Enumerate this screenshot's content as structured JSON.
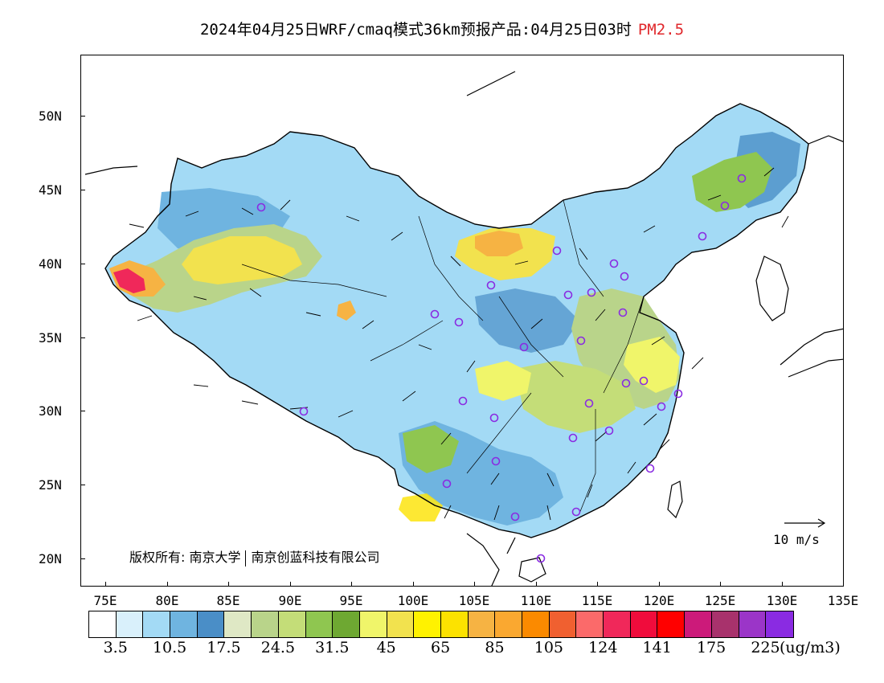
{
  "title": {
    "main": "2024年04月25日WRF/cmaq模式36km预报产品:04月25日03时",
    "pollutant": "PM2.5"
  },
  "map": {
    "lat_labels": [
      "50N",
      "45N",
      "40N",
      "35N",
      "30N",
      "25N",
      "20N"
    ],
    "lon_labels": [
      "75E",
      "80E",
      "85E",
      "90E",
      "95E",
      "100E",
      "105E",
      "110E",
      "115E",
      "120E",
      "125E",
      "130E",
      "135E"
    ],
    "copyright_left": "版权所有: 南京大学",
    "copyright_right": "南京创蓝科技有限公司",
    "reference_vector_label": "10 m/s",
    "coastline_color": "#000000",
    "station_marker_color": "#8a2be2"
  },
  "legend": {
    "colors": [
      "#ffffff",
      "#d9f0fb",
      "#a3daf5",
      "#6fb4e0",
      "#4a8ec7",
      "#dfe8c5",
      "#b9d48a",
      "#c4dd78",
      "#8fc650",
      "#6ea832",
      "#f0f56a",
      "#f2e24e",
      "#fff200",
      "#fce200",
      "#f6b343",
      "#faa830",
      "#fb8a00",
      "#f06030",
      "#fb6a6a",
      "#f0285a",
      "#f00c3c",
      "#ff0000",
      "#cc1a7a",
      "#a8326c",
      "#9b35c8",
      "#8a2be2"
    ],
    "tick_labels": [
      "3.5",
      "10.5",
      "17.5",
      "24.5",
      "31.5",
      "45",
      "65",
      "85",
      "105",
      "124",
      "141",
      "175",
      "225"
    ],
    "unit": "(ug/m3)"
  }
}
